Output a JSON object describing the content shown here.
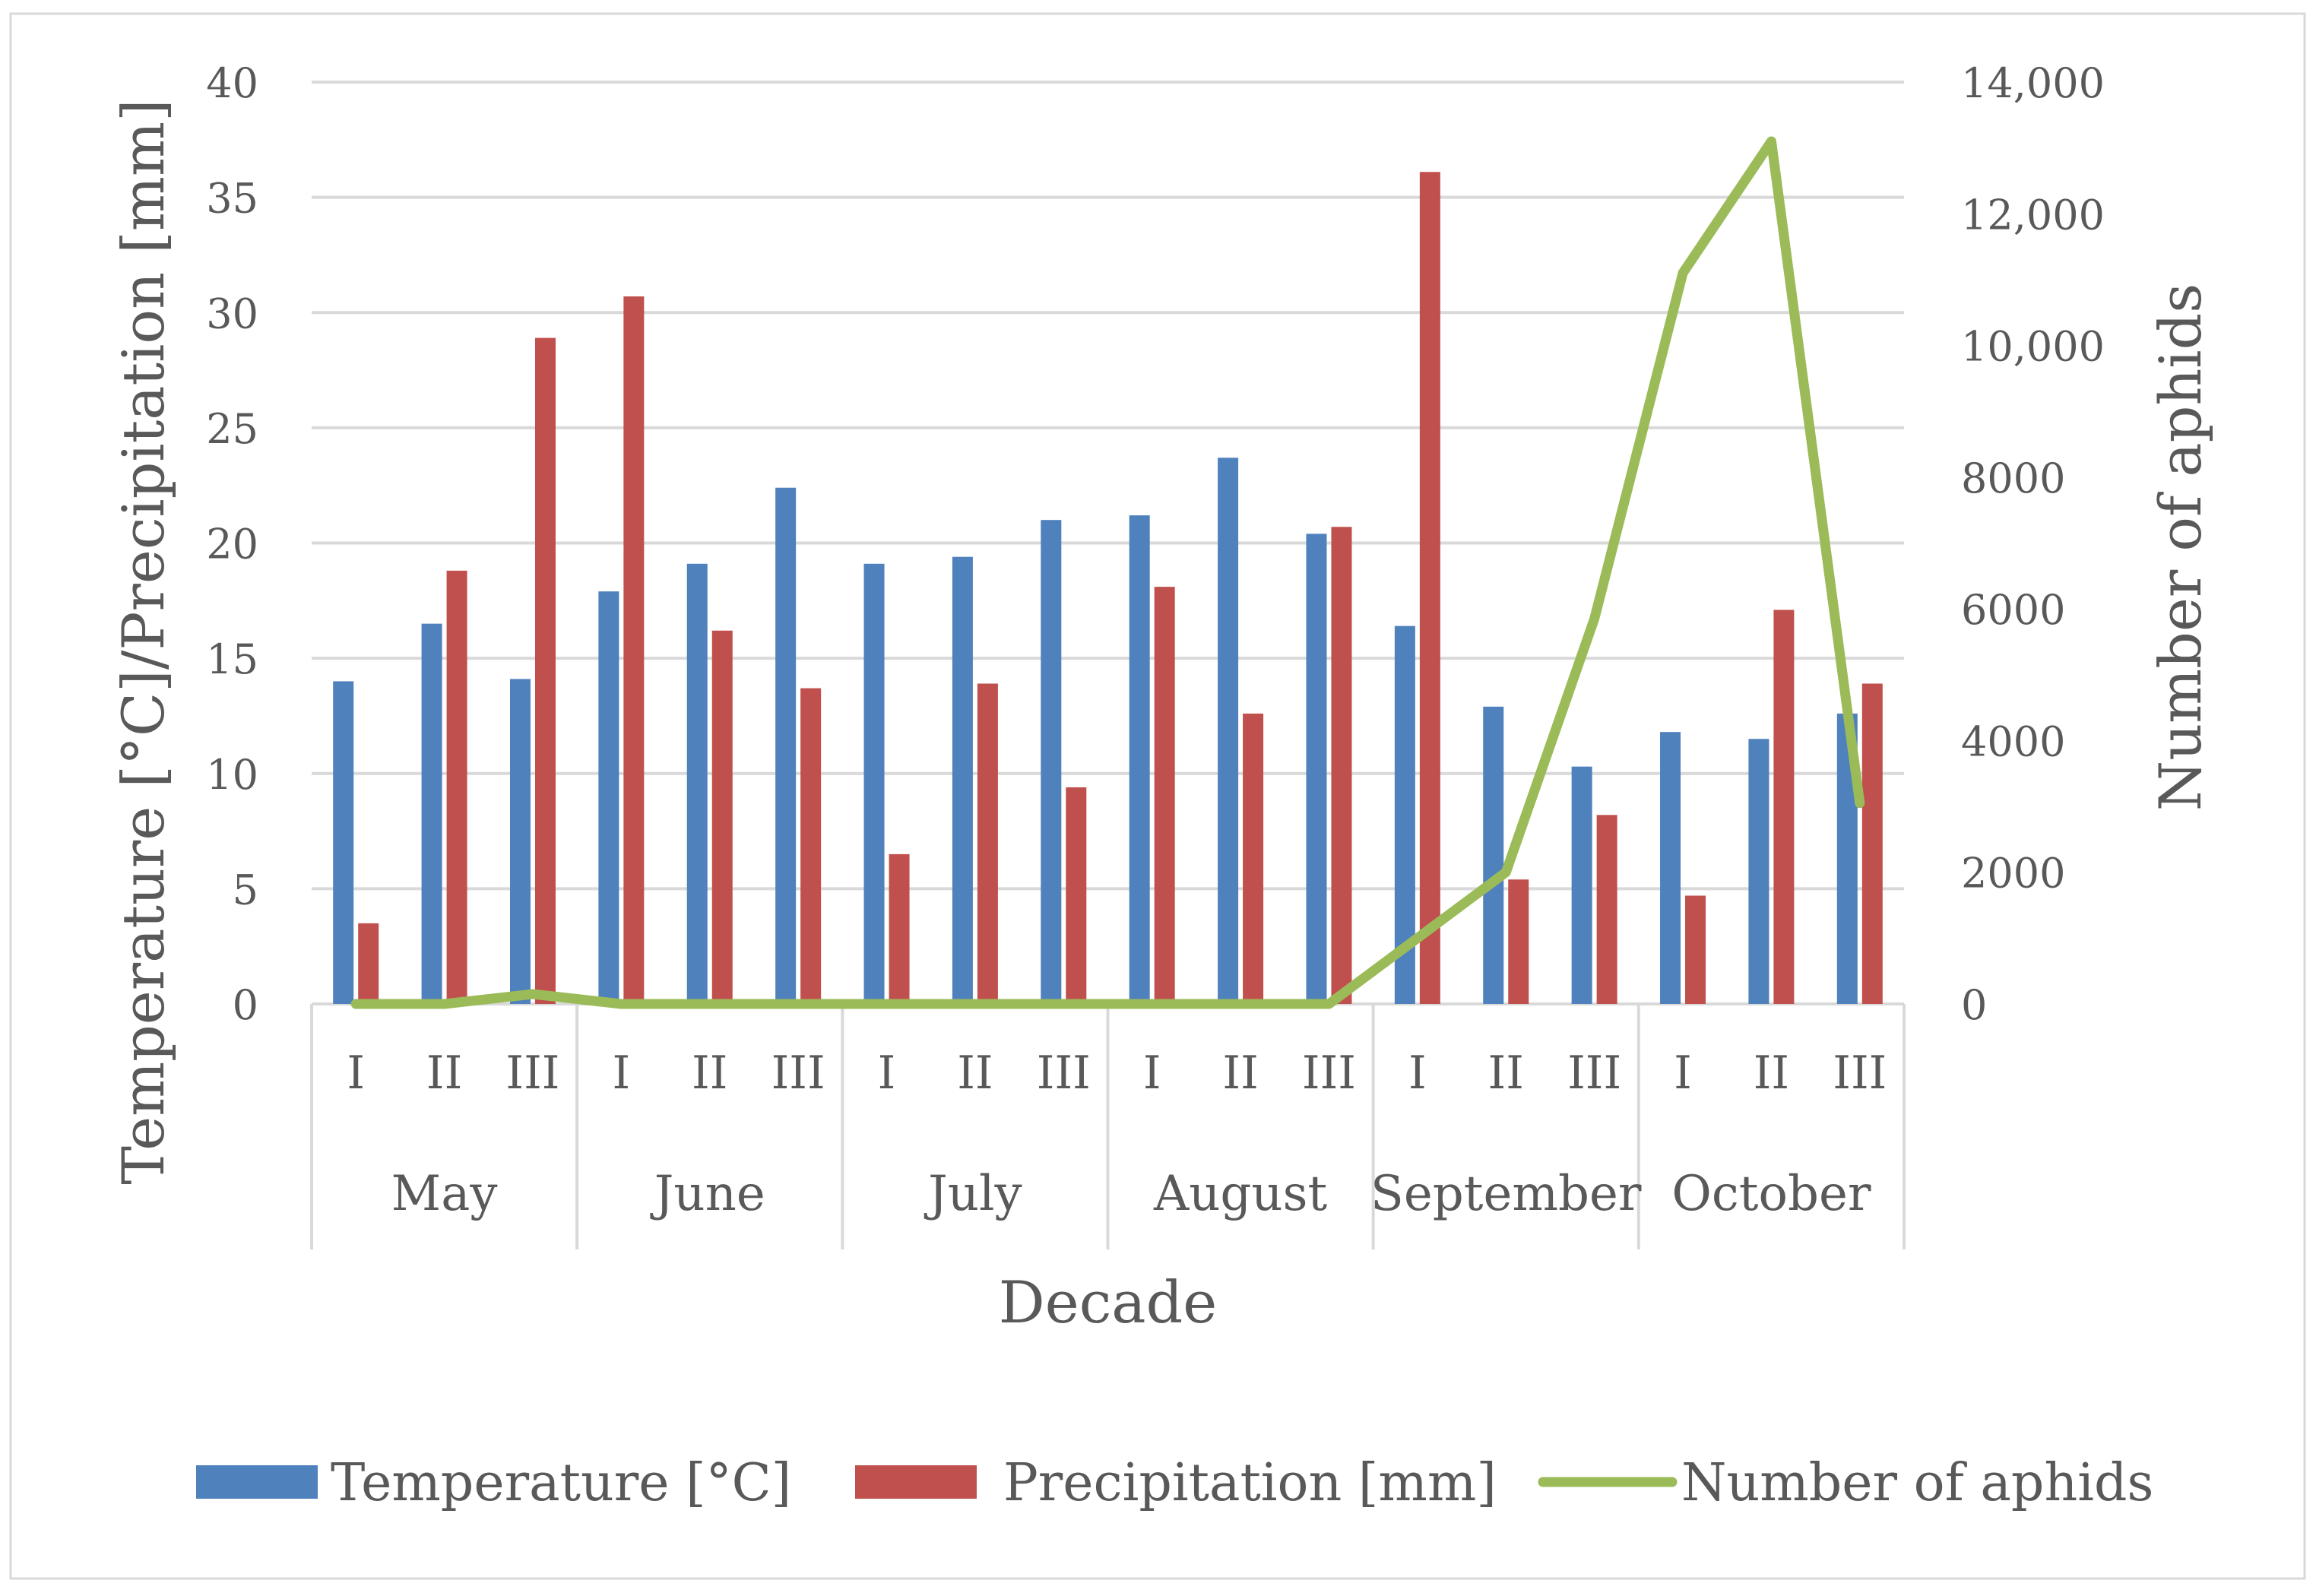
{
  "chart_data": {
    "type": "bar",
    "title": "",
    "xlabel": "Decade",
    "ylabel": "Temperature [°C]/Precipitation [mm]",
    "y2label": "Number of aphids",
    "ylim": [
      0,
      40
    ],
    "yticks": [
      "0",
      "5",
      "10",
      "15",
      "20",
      "25",
      "30",
      "35",
      "40"
    ],
    "y2lim": [
      0,
      14000
    ],
    "y2ticks": [
      "0",
      "2000",
      "4000",
      "6000",
      "8000",
      "10,000",
      "12,000",
      "14,000"
    ],
    "months": [
      "May",
      "June",
      "July",
      "August",
      "September",
      "October"
    ],
    "decades": [
      "I",
      "II",
      "III"
    ],
    "categories": [
      "May I",
      "May II",
      "May III",
      "June I",
      "June II",
      "June III",
      "July I",
      "July II",
      "July III",
      "August I",
      "August II",
      "August III",
      "September I",
      "September II",
      "September III",
      "October I",
      "October II",
      "October III"
    ],
    "series": [
      {
        "name": "Temperature [°C]",
        "kind": "bar",
        "axis": "left",
        "color": "#4F81BD",
        "values": [
          14.0,
          16.5,
          14.1,
          17.9,
          19.1,
          22.4,
          19.1,
          19.4,
          21.0,
          21.2,
          23.7,
          20.4,
          16.4,
          12.9,
          10.3,
          11.8,
          11.5,
          12.6
        ]
      },
      {
        "name": "Precipitation [mm]",
        "kind": "bar",
        "axis": "left",
        "color": "#C0504D",
        "values": [
          3.5,
          18.8,
          28.9,
          30.7,
          16.2,
          13.7,
          6.5,
          13.9,
          9.4,
          18.1,
          12.6,
          20.7,
          36.1,
          5.4,
          8.2,
          4.7,
          17.1,
          13.9
        ]
      },
      {
        "name": "Number of aphids",
        "kind": "line",
        "axis": "right",
        "color": "#9BBB59",
        "values": [
          0,
          0,
          150,
          0,
          0,
          0,
          0,
          0,
          0,
          0,
          0,
          0,
          1000,
          2000,
          5850,
          11100,
          13100,
          3050
        ]
      }
    ],
    "legend": {
      "position": "bottom"
    },
    "grid": true
  }
}
